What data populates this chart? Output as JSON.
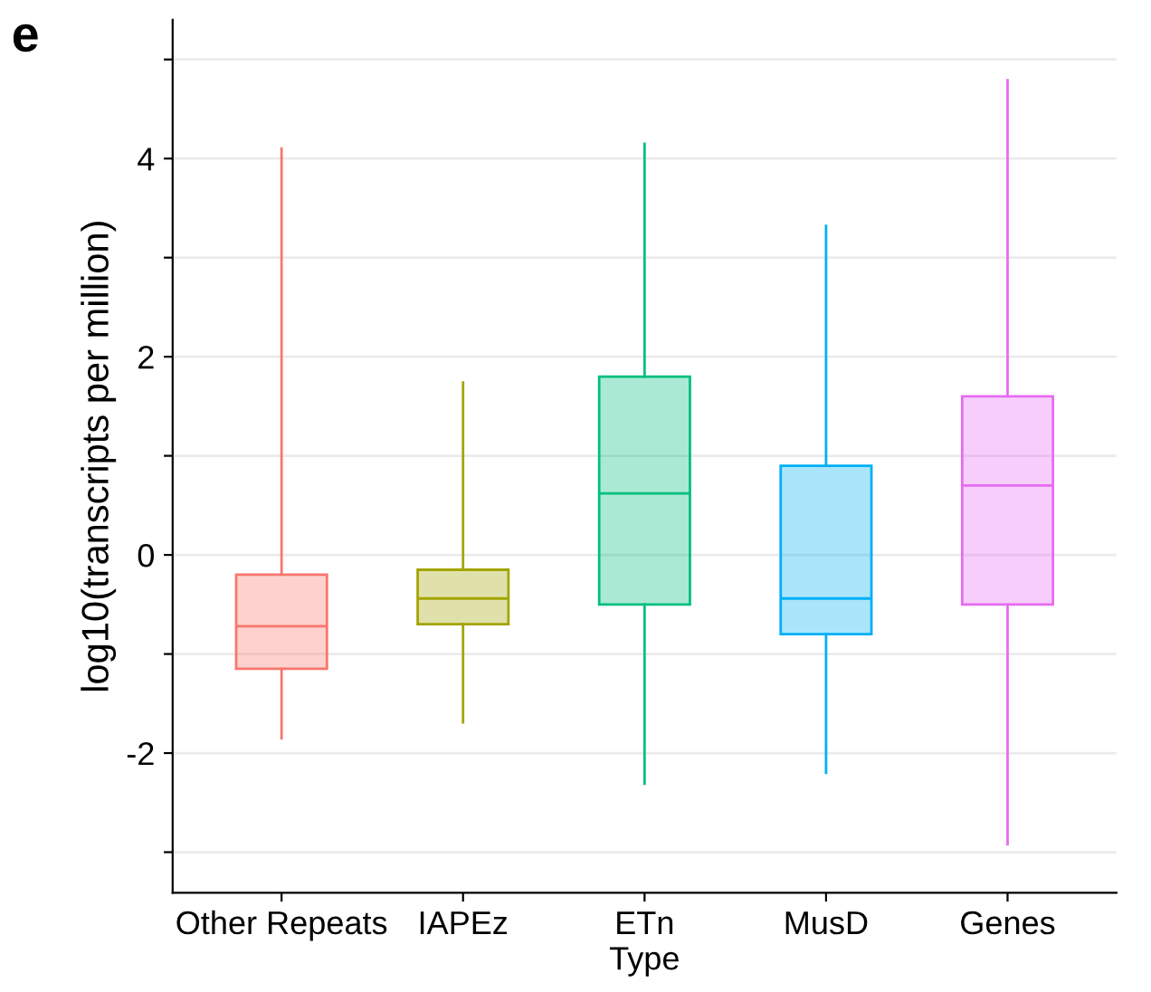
{
  "chart_data": {
    "type": "box",
    "xlabel": "Type",
    "ylabel": "log10(transcripts per million)",
    "annotations": [
      "e"
    ],
    "categories": [
      "Other Repeats",
      "IAPEz",
      "ETn",
      "MusD",
      "Genes"
    ],
    "colors": [
      "#F8766D",
      "#A3A500",
      "#00BF7D",
      "#00B0F6",
      "#E76BF3"
    ],
    "boxes": [
      {
        "low": -1.85,
        "q1": -1.15,
        "median": -0.72,
        "q3": -0.2,
        "high": 4.1
      },
      {
        "low": -1.69,
        "q1": -0.7,
        "median": -0.44,
        "q3": -0.15,
        "high": 1.74
      },
      {
        "low": -2.31,
        "q1": -0.5,
        "median": 0.62,
        "q3": 1.8,
        "high": 4.15
      },
      {
        "low": -2.2,
        "q1": -0.8,
        "median": -0.44,
        "q3": 0.9,
        "high": 3.32
      },
      {
        "low": -2.92,
        "q1": -0.5,
        "median": 0.7,
        "q3": 1.6,
        "high": 4.79
      }
    ],
    "ylim": [
      -3.41,
      5.4
    ],
    "yticks": [
      {
        "value": -3,
        "label": null
      },
      -2,
      {
        "value": -1,
        "label": null
      },
      0,
      {
        "value": 1,
        "label": null
      },
      2,
      {
        "value": 3,
        "label": null
      },
      4,
      {
        "value": 5,
        "label": null
      }
    ],
    "grid": "y",
    "legend": false
  }
}
